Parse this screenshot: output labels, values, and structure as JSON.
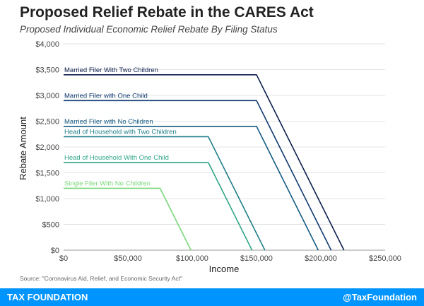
{
  "title": "Proposed Relief Rebate in the CARES Act",
  "subtitle": "Proposed Individual Economic Relief Rebate By Filing Status",
  "source": "Source: \"Coronavirus Aid, Relief, and Economic Security Act\"",
  "footer": {
    "brand": "TAX FOUNDATION",
    "handle": "@TaxFoundation"
  },
  "colors": {
    "footer_bg": "#0094ff",
    "series": [
      "#0d1f4f",
      "#123b73",
      "#165b82",
      "#1e7e89",
      "#2fa588",
      "#7bd77a"
    ]
  },
  "chart_data": {
    "type": "line",
    "xlabel": "Income",
    "ylabel": "Rebate Amount",
    "xlim": [
      0,
      250000
    ],
    "ylim": [
      0,
      4000
    ],
    "xticks": [
      0,
      50000,
      100000,
      150000,
      200000,
      250000
    ],
    "yticks": [
      0,
      500,
      1000,
      1500,
      2000,
      2500,
      3000,
      3500,
      4000
    ],
    "xtick_labels": [
      "$0",
      "$50,000",
      "$100,000",
      "$150,000",
      "$200,000",
      "$250,000"
    ],
    "ytick_labels": [
      "$0",
      "$500",
      "$1,000",
      "$1,500",
      "$2,000",
      "$2,500",
      "$3,000",
      "$3,500",
      "$4,000"
    ],
    "grid": "horizontal",
    "series": [
      {
        "name": "Married Filer With Two Children",
        "points": [
          [
            0,
            3400
          ],
          [
            150000,
            3400
          ],
          [
            218000,
            0
          ]
        ]
      },
      {
        "name": "Married Filer with One Child",
        "points": [
          [
            0,
            2900
          ],
          [
            150000,
            2900
          ],
          [
            208000,
            0
          ]
        ]
      },
      {
        "name": "Married Filer with No Children",
        "points": [
          [
            0,
            2400
          ],
          [
            150000,
            2400
          ],
          [
            198000,
            0
          ]
        ]
      },
      {
        "name": "Head of Household with Two Children",
        "points": [
          [
            0,
            2200
          ],
          [
            112500,
            2200
          ],
          [
            156500,
            0
          ]
        ]
      },
      {
        "name": "Head of Household With One Child",
        "points": [
          [
            0,
            1700
          ],
          [
            112500,
            1700
          ],
          [
            146500,
            0
          ]
        ]
      },
      {
        "name": "Single Filer With No Children",
        "points": [
          [
            0,
            1200
          ],
          [
            75000,
            1200
          ],
          [
            99000,
            0
          ]
        ]
      }
    ]
  }
}
